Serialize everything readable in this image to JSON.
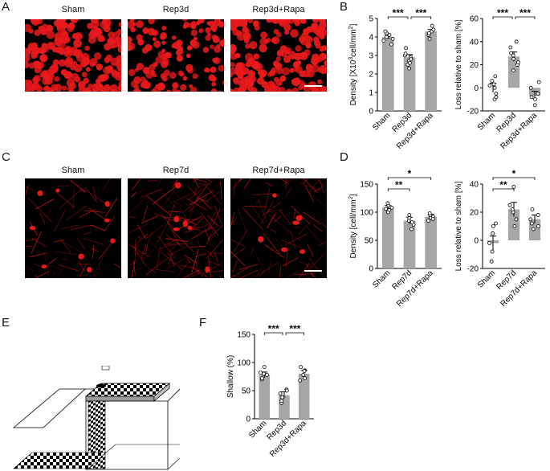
{
  "panels": {
    "A": {
      "letter": "A",
      "images": [
        {
          "title": "Sham"
        },
        {
          "title": "Rep3d"
        },
        {
          "title": "Rep3d+Rapa"
        }
      ]
    },
    "C": {
      "letter": "C",
      "images": [
        {
          "title": "Sham"
        },
        {
          "title": "Rep7d"
        },
        {
          "title": "Rep7d+Rapa"
        }
      ]
    },
    "B": {
      "letter": "B"
    },
    "D": {
      "letter": "D"
    },
    "E": {
      "letter": "E"
    },
    "F": {
      "letter": "F"
    }
  },
  "colors": {
    "bar": "#a6a6a6",
    "micro_signal": "#e8191b",
    "background": "#000000"
  },
  "chart_data": [
    {
      "id": "B1",
      "type": "bar",
      "categories": [
        "Sham",
        "Rep3d",
        "Rep3d+Rapa"
      ],
      "values": [
        4.0,
        2.9,
        4.3
      ],
      "errors": [
        0.1,
        0.15,
        0.1
      ],
      "points": [
        [
          3.6,
          3.8,
          4.0,
          4.1,
          4.2,
          4.3,
          3.9,
          4.0
        ],
        [
          2.3,
          2.5,
          2.7,
          2.9,
          3.0,
          3.1,
          3.4,
          2.6,
          2.8
        ],
        [
          3.9,
          4.1,
          4.3,
          4.4,
          4.6,
          4.2
        ]
      ],
      "ylabel_main": "Density [X10",
      "ylabel_sup": "3",
      "ylabel_mid": "cell/mm",
      "ylabel_sup2": "2",
      "ylabel_end": "]",
      "ylim": [
        0,
        5
      ],
      "yticks": [
        "0",
        "1",
        "2",
        "3",
        "4",
        "5"
      ],
      "significance": [
        {
          "label": "***"
        },
        {
          "label": "***"
        }
      ]
    },
    {
      "id": "B2",
      "type": "bar",
      "categories": [
        "Sham",
        "Rep3d",
        "Rep3d+Rapa"
      ],
      "values": [
        0,
        27,
        -7
      ],
      "errors": [
        4,
        4,
        4
      ],
      "points": [
        [
          -10,
          -5,
          0,
          3,
          6,
          10,
          -8,
          2
        ],
        [
          15,
          20,
          25,
          30,
          35,
          40,
          28,
          22
        ],
        [
          -15,
          -10,
          -5,
          0,
          5,
          -8
        ]
      ],
      "ylabel": "Loss relative to sham [%]",
      "ylim": [
        -20,
        60
      ],
      "yticks": [
        "-20",
        "0",
        "20",
        "40",
        "60"
      ],
      "significance": [
        {
          "label": "***"
        },
        {
          "label": "***"
        }
      ]
    },
    {
      "id": "D1",
      "type": "bar",
      "categories": [
        "Sham",
        "Rep7d",
        "Rep7d+Rapa"
      ],
      "values": [
        108,
        85,
        92
      ],
      "errors": [
        4,
        6,
        4
      ],
      "points": [
        [
          100,
          104,
          108,
          112,
          116,
          106
        ],
        [
          70,
          78,
          85,
          90,
          95,
          82
        ],
        [
          85,
          90,
          92,
          95,
          98,
          88
        ]
      ],
      "ylabel_main": "Density [cell/mm",
      "ylabel_sup": "2",
      "ylabel_end": "]",
      "ylim": [
        0,
        150
      ],
      "yticks": [
        "0",
        "50",
        "100",
        "150"
      ],
      "significance": [
        {
          "label": "**"
        },
        {
          "label": "*"
        }
      ]
    },
    {
      "id": "D2",
      "type": "bar",
      "categories": [
        "Sham",
        "Rep7d",
        "Rep7d+Rapa"
      ],
      "values": [
        -2,
        22,
        15
      ],
      "errors": [
        5,
        5,
        3
      ],
      "points": [
        [
          -15,
          -8,
          -2,
          5,
          10,
          12
        ],
        [
          10,
          15,
          20,
          25,
          38,
          22
        ],
        [
          8,
          12,
          15,
          18,
          22,
          10
        ]
      ],
      "ylabel": "Loss relative to sham [%]",
      "ylim": [
        -20,
        40
      ],
      "yticks": [
        "-20",
        "0",
        "20",
        "40"
      ],
      "significance": [
        {
          "label": "**"
        },
        {
          "label": "*"
        }
      ]
    },
    {
      "id": "F",
      "type": "bar",
      "categories": [
        "Sham",
        "Rep3d",
        "Rep3d+Rapa"
      ],
      "values": [
        78,
        42,
        80
      ],
      "errors": [
        5,
        6,
        6
      ],
      "points": [
        [
          70,
          72,
          78,
          82,
          92,
          80
        ],
        [
          28,
          32,
          38,
          45,
          52,
          50
        ],
        [
          68,
          72,
          78,
          86,
          92,
          85
        ]
      ],
      "ylabel": "Shallow (%)",
      "ylim": [
        0,
        150
      ],
      "yticks": [
        "0",
        "50",
        "100",
        "150"
      ],
      "significance": [
        {
          "label": "***"
        },
        {
          "label": "***"
        }
      ]
    }
  ]
}
